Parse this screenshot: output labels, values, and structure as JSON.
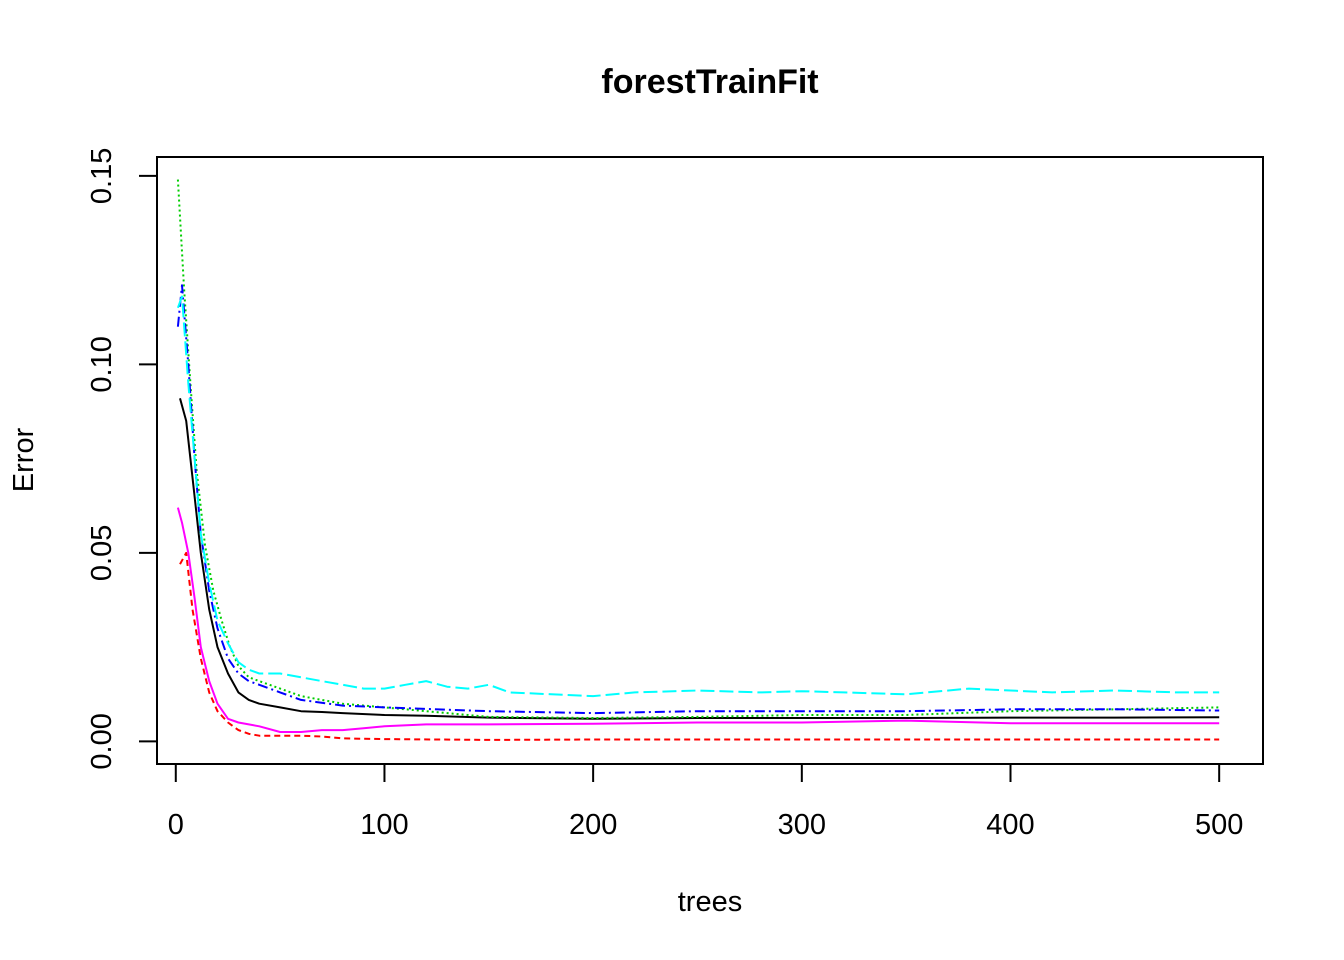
{
  "chart_data": {
    "type": "line",
    "title": "forestTrainFit",
    "xlabel": "trees",
    "ylabel": "Error",
    "xlim": [
      -9,
      521
    ],
    "ylim": [
      -0.006,
      0.155
    ],
    "xticks": [
      {
        "value": 0,
        "label": "0"
      },
      {
        "value": 100,
        "label": "100"
      },
      {
        "value": 200,
        "label": "200"
      },
      {
        "value": 300,
        "label": "300"
      },
      {
        "value": 400,
        "label": "400"
      },
      {
        "value": 500,
        "label": "500"
      }
    ],
    "yticks": [
      {
        "value": 0.0,
        "label": "0.00"
      },
      {
        "value": 0.05,
        "label": "0.05"
      },
      {
        "value": 0.1,
        "label": "0.10"
      },
      {
        "value": 0.15,
        "label": "0.15"
      }
    ],
    "grid": false,
    "series": [
      {
        "color": "#000000",
        "dash": "",
        "x": [
          2,
          5,
          8,
          12,
          16,
          20,
          25,
          30,
          35,
          40,
          50,
          60,
          70,
          80,
          100,
          120,
          150,
          200,
          250,
          300,
          350,
          400,
          450,
          500
        ],
        "y": [
          0.091,
          0.085,
          0.07,
          0.05,
          0.035,
          0.025,
          0.018,
          0.013,
          0.011,
          0.01,
          0.009,
          0.008,
          0.0078,
          0.0075,
          0.007,
          0.0068,
          0.0063,
          0.006,
          0.0062,
          0.0062,
          0.0062,
          0.0063,
          0.0063,
          0.0064
        ]
      },
      {
        "color": "#ff0000",
        "dash": "6,4",
        "x": [
          2,
          5,
          8,
          12,
          16,
          20,
          25,
          30,
          35,
          40,
          50,
          60,
          70,
          80,
          100,
          150,
          200,
          250,
          300,
          350,
          400,
          450,
          500
        ],
        "y": [
          0.047,
          0.05,
          0.035,
          0.022,
          0.013,
          0.008,
          0.005,
          0.003,
          0.002,
          0.0015,
          0.0015,
          0.0015,
          0.0013,
          0.0008,
          0.0006,
          0.0004,
          0.0005,
          0.0005,
          0.0005,
          0.0005,
          0.0005,
          0.0005,
          0.0005
        ]
      },
      {
        "color": "#00cd00",
        "dash": "2,3",
        "x": [
          1,
          4,
          7,
          10,
          14,
          18,
          22,
          26,
          30,
          35,
          40,
          50,
          60,
          80,
          100,
          150,
          200,
          250,
          300,
          350,
          400,
          450,
          500
        ],
        "y": [
          0.149,
          0.12,
          0.095,
          0.072,
          0.052,
          0.04,
          0.032,
          0.025,
          0.02,
          0.017,
          0.016,
          0.014,
          0.012,
          0.01,
          0.009,
          0.0065,
          0.0062,
          0.0065,
          0.007,
          0.007,
          0.008,
          0.0085,
          0.009
        ]
      },
      {
        "color": "#0000ff",
        "dash": "10,4,2,4",
        "x": [
          1,
          3,
          6,
          9,
          12,
          16,
          20,
          25,
          30,
          35,
          40,
          50,
          60,
          80,
          100,
          150,
          200,
          250,
          300,
          350,
          400,
          450,
          500
        ],
        "y": [
          0.11,
          0.121,
          0.1,
          0.075,
          0.055,
          0.04,
          0.03,
          0.022,
          0.018,
          0.016,
          0.015,
          0.013,
          0.011,
          0.0095,
          0.009,
          0.008,
          0.0075,
          0.008,
          0.008,
          0.008,
          0.0085,
          0.0085,
          0.0082
        ]
      },
      {
        "color": "#00ffff",
        "dash": "14,5",
        "x": [
          1,
          3,
          6,
          9,
          12,
          16,
          20,
          25,
          30,
          35,
          40,
          50,
          60,
          70,
          80,
          90,
          100,
          110,
          120,
          130,
          140,
          150,
          160,
          180,
          200,
          220,
          250,
          280,
          300,
          320,
          350,
          380,
          400,
          420,
          450,
          480,
          500
        ],
        "y": [
          0.115,
          0.118,
          0.095,
          0.075,
          0.055,
          0.042,
          0.032,
          0.026,
          0.021,
          0.019,
          0.018,
          0.018,
          0.017,
          0.016,
          0.015,
          0.014,
          0.014,
          0.015,
          0.016,
          0.0145,
          0.014,
          0.015,
          0.013,
          0.0125,
          0.012,
          0.013,
          0.0135,
          0.013,
          0.0133,
          0.013,
          0.0125,
          0.014,
          0.0135,
          0.013,
          0.0135,
          0.013,
          0.013
        ]
      },
      {
        "color": "#ff00ff",
        "dash": "",
        "x": [
          1,
          3,
          6,
          9,
          12,
          16,
          20,
          25,
          30,
          35,
          40,
          50,
          60,
          70,
          80,
          90,
          100,
          120,
          150,
          200,
          250,
          300,
          350,
          400,
          450,
          500
        ],
        "y": [
          0.062,
          0.058,
          0.05,
          0.038,
          0.025,
          0.016,
          0.01,
          0.006,
          0.005,
          0.0045,
          0.004,
          0.0025,
          0.0025,
          0.003,
          0.003,
          0.0035,
          0.004,
          0.0045,
          0.0045,
          0.0047,
          0.005,
          0.005,
          0.0055,
          0.0048,
          0.0048,
          0.0048
        ]
      }
    ]
  }
}
